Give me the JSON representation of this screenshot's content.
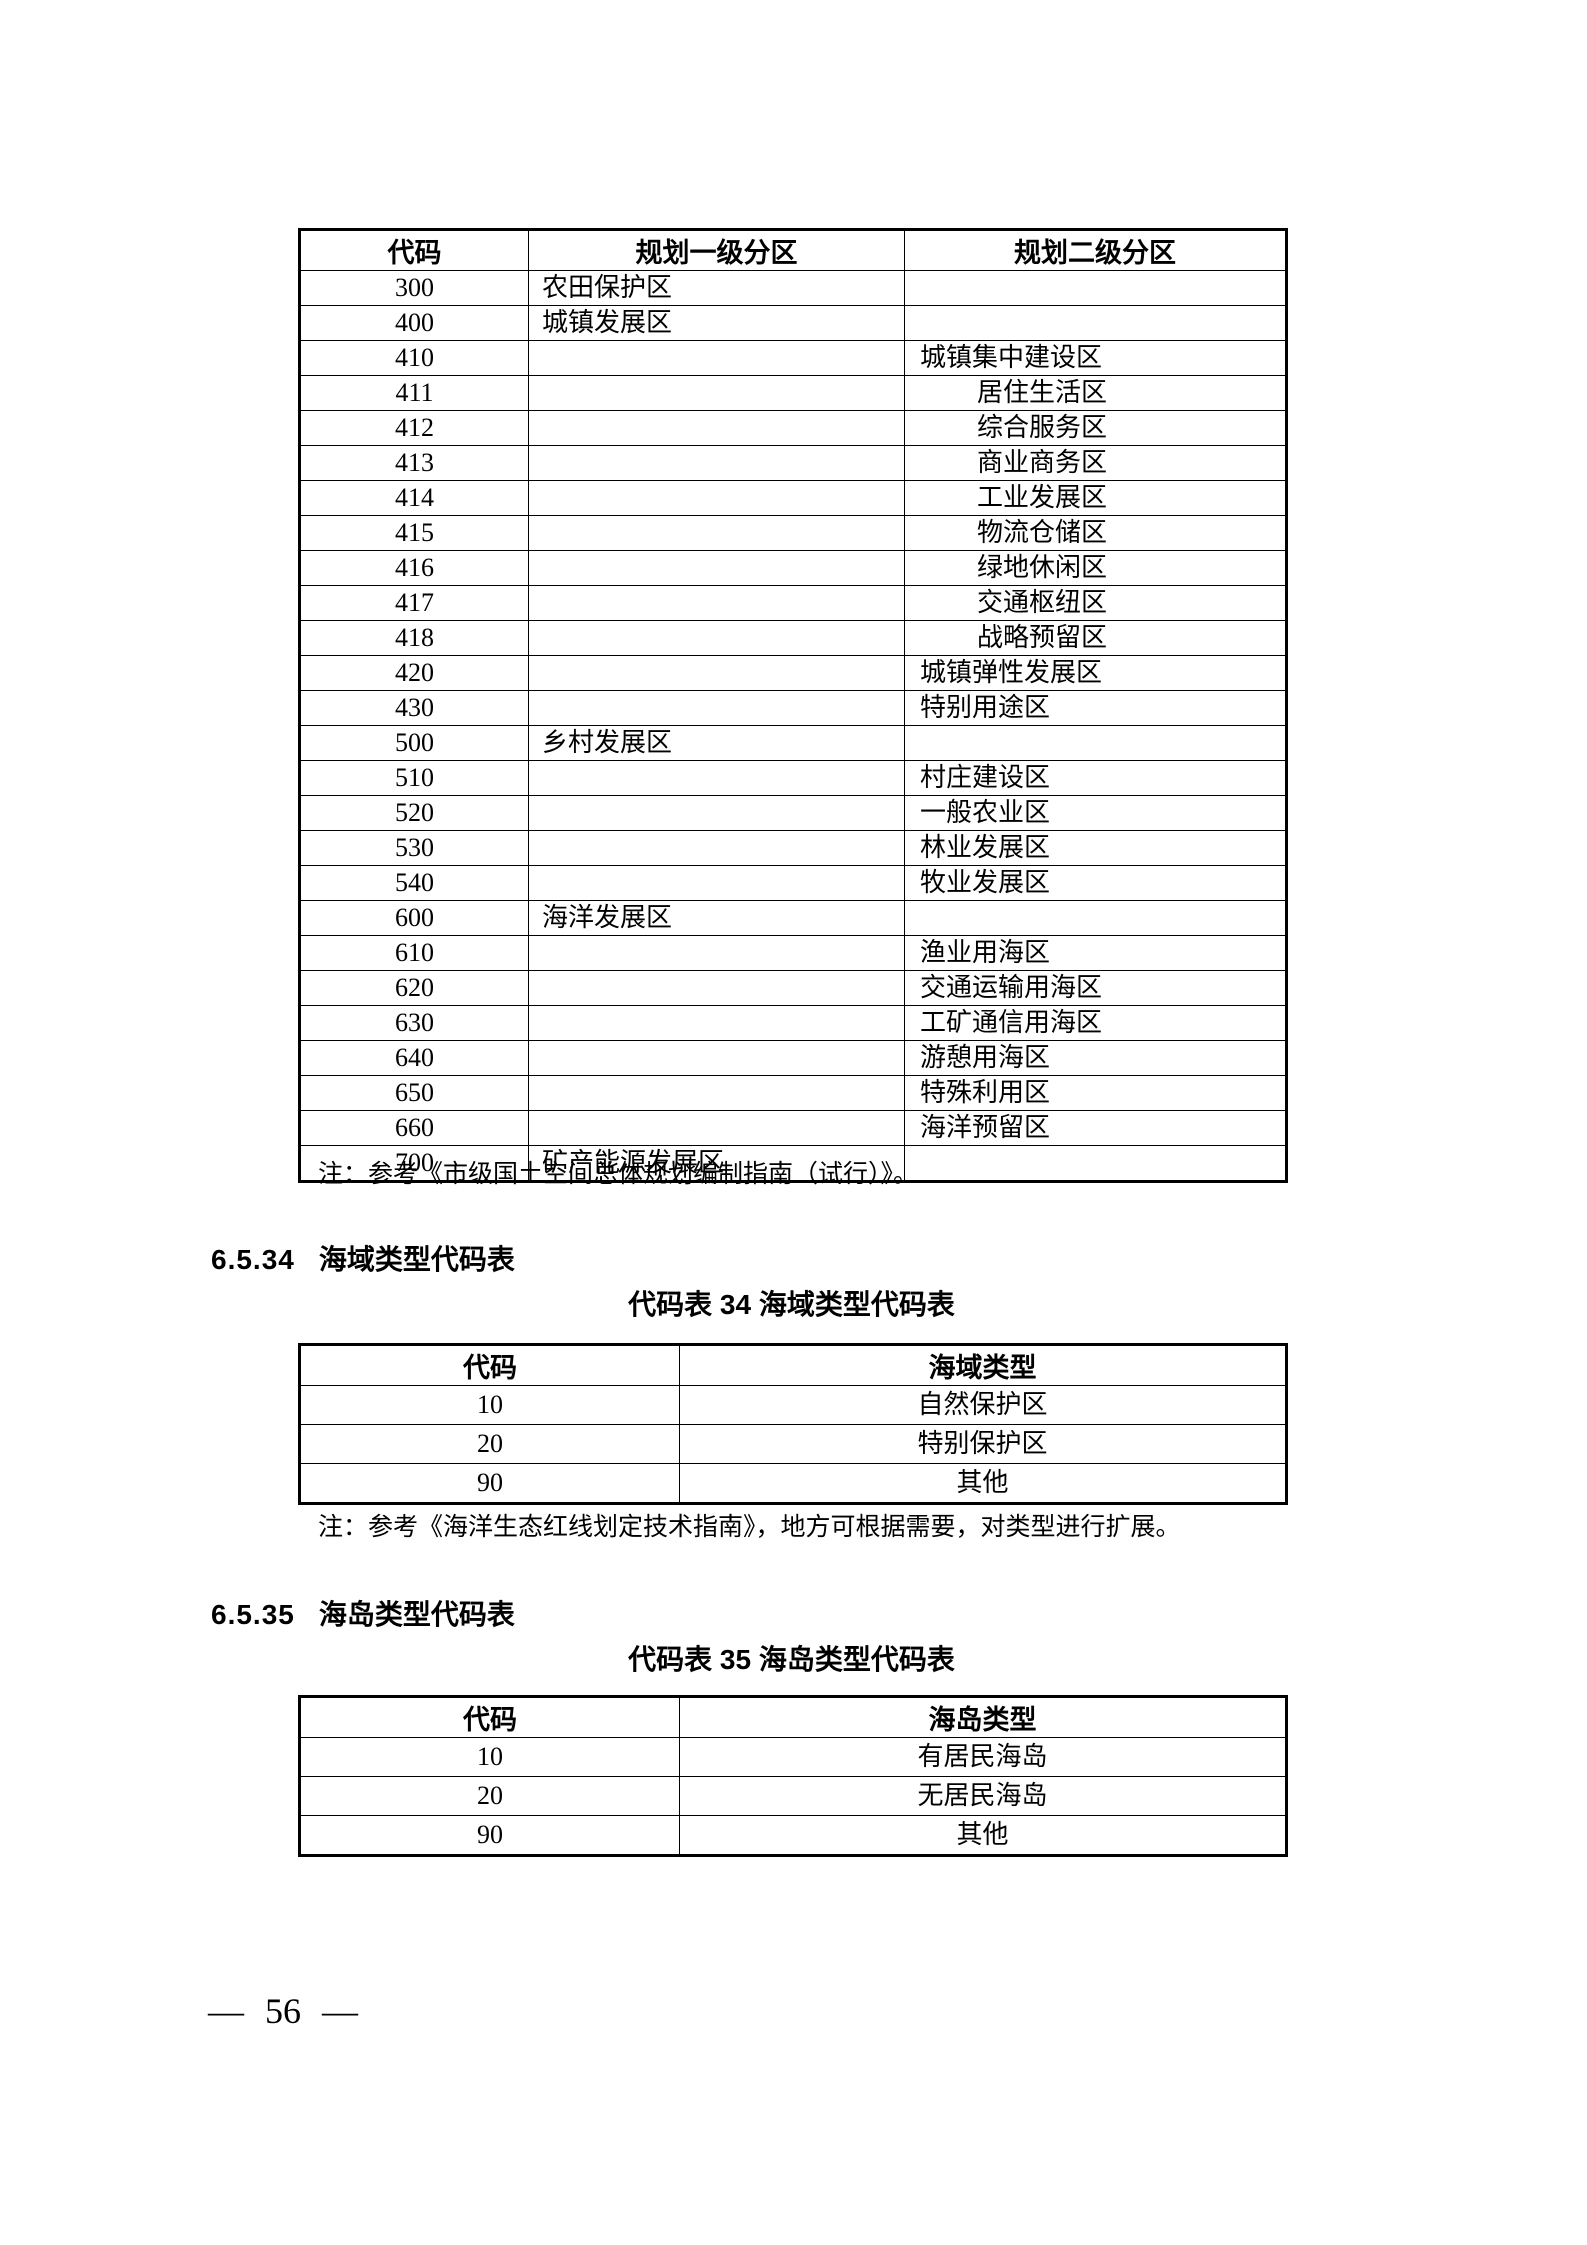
{
  "page": {
    "number_label": "— 56 —"
  },
  "table1": {
    "headers": [
      "代码",
      "规划一级分区",
      "规划二级分区"
    ],
    "rows": [
      {
        "code": "300",
        "l1": "农田保护区",
        "l2": "",
        "indent": false
      },
      {
        "code": "400",
        "l1": "城镇发展区",
        "l2": "",
        "indent": false
      },
      {
        "code": "410",
        "l1": "",
        "l2": "城镇集中建设区",
        "indent": false
      },
      {
        "code": "411",
        "l1": "",
        "l2": "居住生活区",
        "indent": true
      },
      {
        "code": "412",
        "l1": "",
        "l2": "综合服务区",
        "indent": true
      },
      {
        "code": "413",
        "l1": "",
        "l2": "商业商务区",
        "indent": true
      },
      {
        "code": "414",
        "l1": "",
        "l2": "工业发展区",
        "indent": true
      },
      {
        "code": "415",
        "l1": "",
        "l2": "物流仓储区",
        "indent": true
      },
      {
        "code": "416",
        "l1": "",
        "l2": "绿地休闲区",
        "indent": true
      },
      {
        "code": "417",
        "l1": "",
        "l2": "交通枢纽区",
        "indent": true
      },
      {
        "code": "418",
        "l1": "",
        "l2": "战略预留区",
        "indent": true
      },
      {
        "code": "420",
        "l1": "",
        "l2": "城镇弹性发展区",
        "indent": false
      },
      {
        "code": "430",
        "l1": "",
        "l2": "特别用途区",
        "indent": false
      },
      {
        "code": "500",
        "l1": "乡村发展区",
        "l2": "",
        "indent": false
      },
      {
        "code": "510",
        "l1": "",
        "l2": "村庄建设区",
        "indent": false
      },
      {
        "code": "520",
        "l1": "",
        "l2": "一般农业区",
        "indent": false
      },
      {
        "code": "530",
        "l1": "",
        "l2": "林业发展区",
        "indent": false
      },
      {
        "code": "540",
        "l1": "",
        "l2": "牧业发展区",
        "indent": false
      },
      {
        "code": "600",
        "l1": "海洋发展区",
        "l2": "",
        "indent": false
      },
      {
        "code": "610",
        "l1": "",
        "l2": "渔业用海区",
        "indent": false
      },
      {
        "code": "620",
        "l1": "",
        "l2": "交通运输用海区",
        "indent": false
      },
      {
        "code": "630",
        "l1": "",
        "l2": "工矿通信用海区",
        "indent": false
      },
      {
        "code": "640",
        "l1": "",
        "l2": "游憩用海区",
        "indent": false
      },
      {
        "code": "650",
        "l1": "",
        "l2": "特殊利用区",
        "indent": false
      },
      {
        "code": "660",
        "l1": "",
        "l2": "海洋预留区",
        "indent": false
      },
      {
        "code": "700",
        "l1": "矿产能源发展区",
        "l2": "",
        "indent": false
      }
    ],
    "note": "注：参考《市级国土空间总体规划编制指南（试行）》。"
  },
  "section34": {
    "number": "6.5.34",
    "title": "海域类型代码表",
    "table_title": "代码表 34 海域类型代码表",
    "headers": [
      "代码",
      "海域类型"
    ],
    "rows": [
      [
        "10",
        "自然保护区"
      ],
      [
        "20",
        "特别保护区"
      ],
      [
        "90",
        "其他"
      ]
    ],
    "note": "注：参考《海洋生态红线划定技术指南》，地方可根据需要，对类型进行扩展。"
  },
  "section35": {
    "number": "6.5.35",
    "title": "海岛类型代码表",
    "table_title": "代码表 35 海岛类型代码表",
    "headers": [
      "代码",
      "海岛类型"
    ],
    "rows": [
      [
        "10",
        "有居民海岛"
      ],
      [
        "20",
        "无居民海岛"
      ],
      [
        "90",
        "其他"
      ]
    ]
  }
}
